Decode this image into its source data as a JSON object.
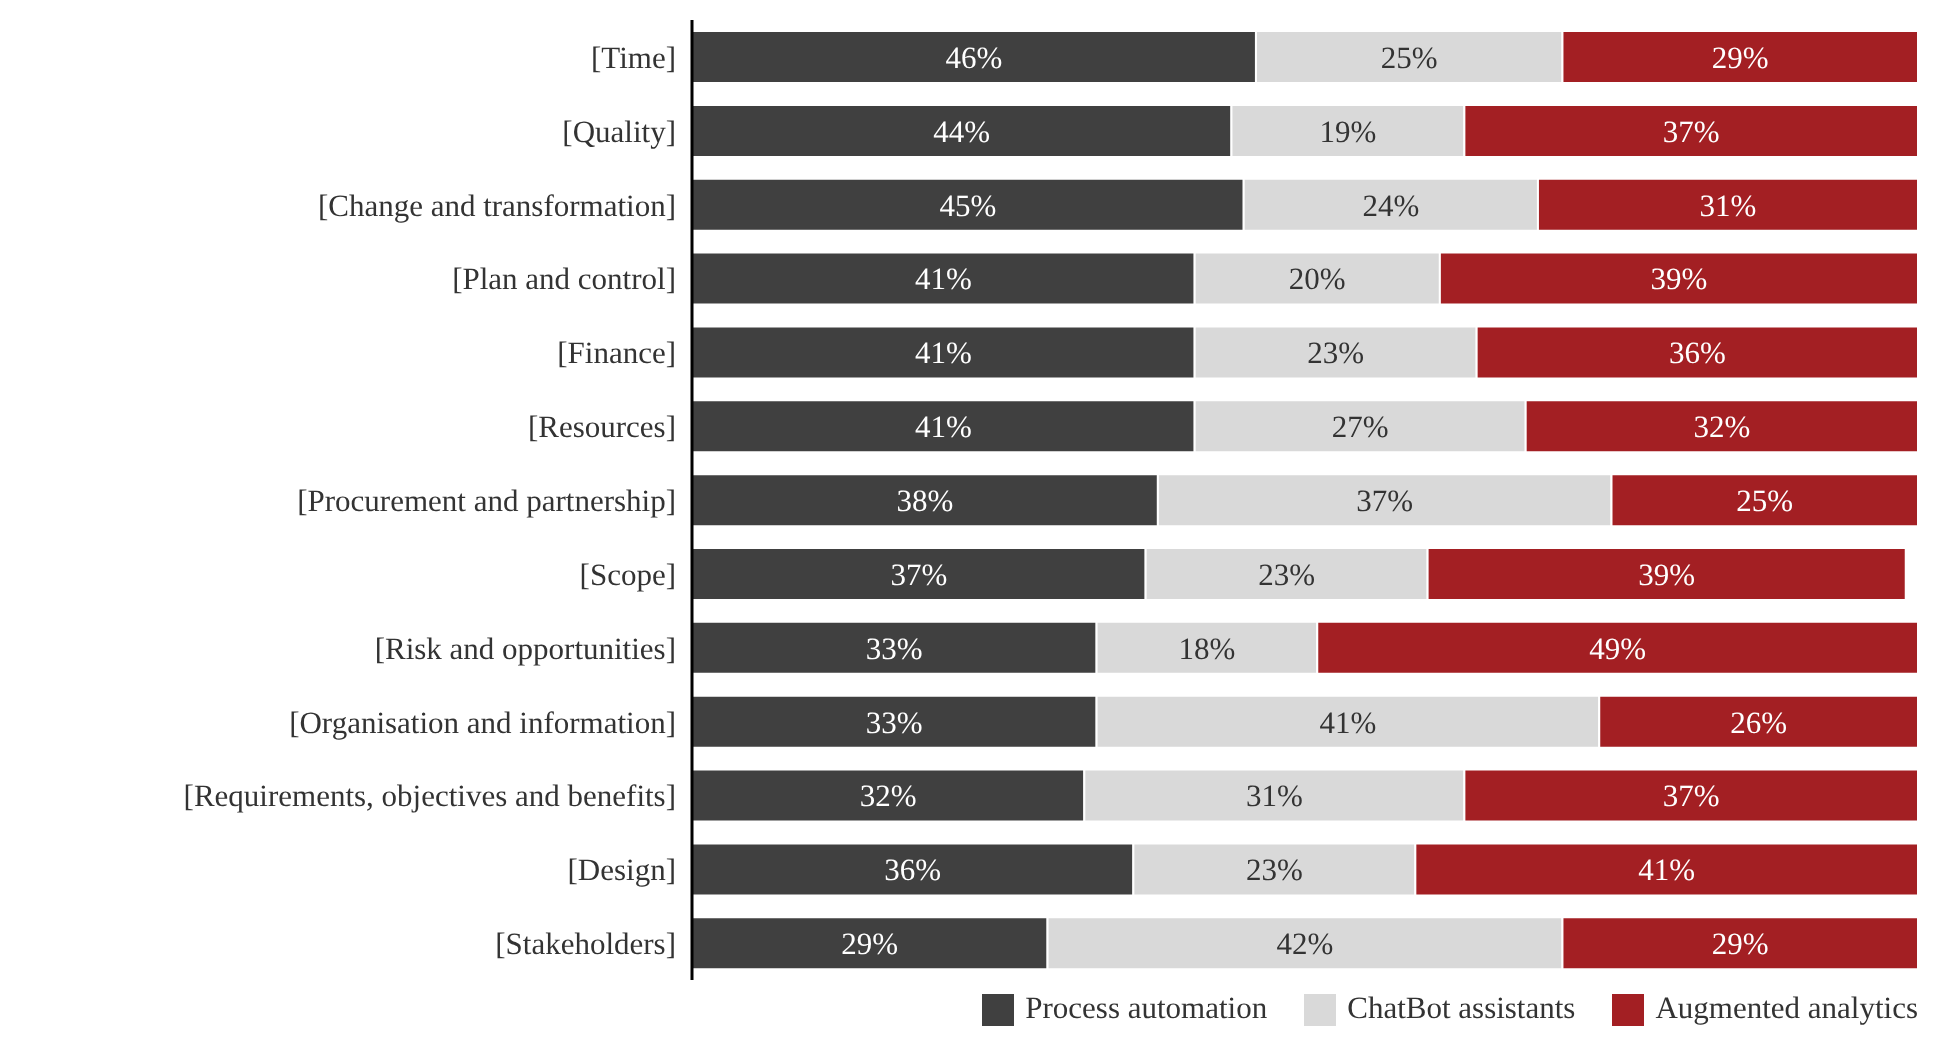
{
  "chart_data": {
    "type": "bar",
    "orientation": "horizontal",
    "stacked": true,
    "categories": [
      "[Time]",
      "[Quality]",
      "[Change and transformation]",
      "[Plan and control]",
      "[Finance]",
      "[Resources]",
      "[Procurement and partnership]",
      "[Scope]",
      "[Risk and opportunities]",
      "[Organisation and information]",
      "[Requirements, objectives and benefits]",
      "[Design]",
      "[Stakeholders]"
    ],
    "series": [
      {
        "name": "Process automation",
        "color": "#404040",
        "values": [
          46,
          44,
          45,
          41,
          41,
          41,
          38,
          37,
          33,
          33,
          32,
          36,
          29
        ],
        "value_labels": [
          "46%",
          "44%",
          "45%",
          "41%",
          "41%",
          "41%",
          "38%",
          "37%",
          "33%",
          "33%",
          "32%",
          "36%",
          "29%"
        ]
      },
      {
        "name": "ChatBot assistants",
        "color": "#d9d9d9",
        "values": [
          25,
          19,
          24,
          20,
          23,
          27,
          37,
          23,
          18,
          41,
          31,
          23,
          42
        ],
        "value_labels": [
          "25%",
          "19%",
          "24%",
          "20%",
          "23%",
          "27%",
          "37%",
          "23%",
          "18%",
          "41%",
          "31%",
          "23%",
          "42%"
        ]
      },
      {
        "name": "Augmented analytics",
        "color": "#a31f23",
        "values": [
          29,
          37,
          31,
          39,
          36,
          32,
          25,
          39,
          49,
          26,
          37,
          41,
          29
        ],
        "value_labels": [
          "29%",
          "37%",
          "31%",
          "39%",
          "36%",
          "32%",
          "25%",
          "39%",
          "49%",
          "26%",
          "37%",
          "41%",
          "29%"
        ]
      }
    ],
    "xlim": [
      0,
      100
    ],
    "tick_labels": "y",
    "legend": "bottom"
  }
}
